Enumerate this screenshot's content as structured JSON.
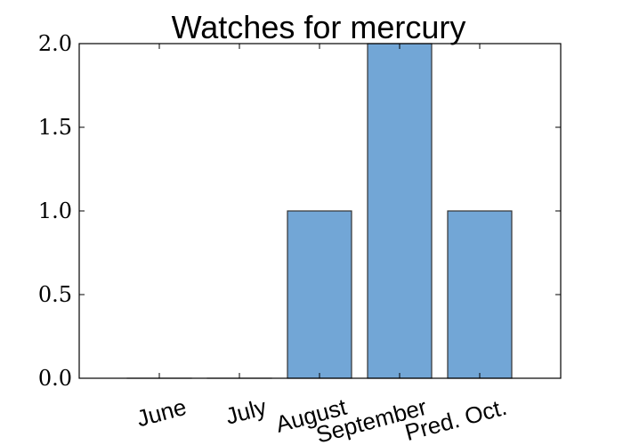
{
  "chart_data": {
    "type": "bar",
    "title": "Watches for mercury",
    "categories": [
      "June",
      "July",
      "August",
      "September",
      "Pred. Oct."
    ],
    "values": [
      0,
      0,
      1,
      2,
      1
    ],
    "xlabel": "",
    "ylabel": "",
    "ylim": [
      0,
      2.0
    ],
    "yticks": [
      "0.0",
      "0.5",
      "1.0",
      "1.5",
      "2.0"
    ],
    "grid": false,
    "bar_color": "#72a6d6"
  }
}
